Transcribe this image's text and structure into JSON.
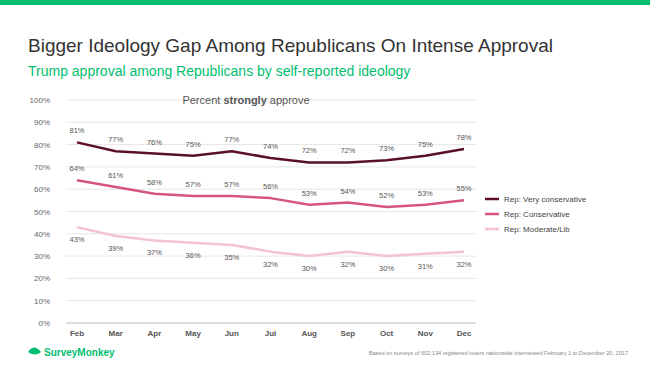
{
  "chart_data": {
    "type": "line",
    "title": "Bigger Ideology Gap Among Republicans On Intense Approval",
    "subtitle": "Trump approval among Republicans by self-reported ideology",
    "annotation": "Percent strongly approve",
    "note": "Based on surveys of 602,134 registered voters nationwide interviewed February 1 to December 20, 2017",
    "logo": "SurveyMonkey",
    "categories": [
      "Feb",
      "Mar",
      "Apr",
      "May",
      "Jun",
      "Jul",
      "Aug",
      "Sep",
      "Oct",
      "Nov",
      "Dec"
    ],
    "series": [
      {
        "name": "Rep: Very conservative",
        "color": "#5a0f2e",
        "values": [
          81,
          77,
          76,
          75,
          77,
          74,
          72,
          72,
          73,
          75,
          78
        ],
        "value_labels": [
          "81%",
          "77%",
          "76%",
          "75%",
          "77%",
          "74%",
          "72%",
          "72%",
          "73%",
          "75%",
          "78%"
        ]
      },
      {
        "name": "Rep: Conservative",
        "color": "#d6557f",
        "values": [
          64,
          61,
          58,
          57,
          57,
          56,
          53,
          54,
          52,
          53,
          55
        ],
        "value_labels": [
          "64%",
          "61%",
          "58%",
          "57%",
          "57%",
          "56%",
          "53%",
          "54%",
          "52%",
          "53%",
          "55%"
        ]
      },
      {
        "name": "Rep: Moderate/Lib",
        "color": "#f4c3d3",
        "values": [
          43,
          39,
          37,
          36,
          35,
          32,
          30,
          32,
          30,
          31,
          32
        ],
        "value_labels": [
          "43%",
          "39%",
          "37%",
          "36%",
          "35%",
          "32%",
          "30%",
          "32%",
          "30%",
          "31%",
          "32%"
        ]
      }
    ],
    "ylim": [
      0,
      100
    ],
    "yticks": [
      {
        "value": 0,
        "label": "0%"
      },
      {
        "value": 10,
        "label": "10%"
      },
      {
        "value": 20,
        "label": "20%"
      },
      {
        "value": 30,
        "label": "30%"
      },
      {
        "value": 40,
        "label": "40%"
      },
      {
        "value": 50,
        "label": "50%"
      },
      {
        "value": 60,
        "label": "60%"
      },
      {
        "value": 70,
        "label": "70%"
      },
      {
        "value": 80,
        "label": "80%"
      },
      {
        "value": 90,
        "label": "90%"
      },
      {
        "value": 100,
        "label": "100%"
      }
    ],
    "grid": true,
    "legend": "right",
    "data_labels": true
  }
}
